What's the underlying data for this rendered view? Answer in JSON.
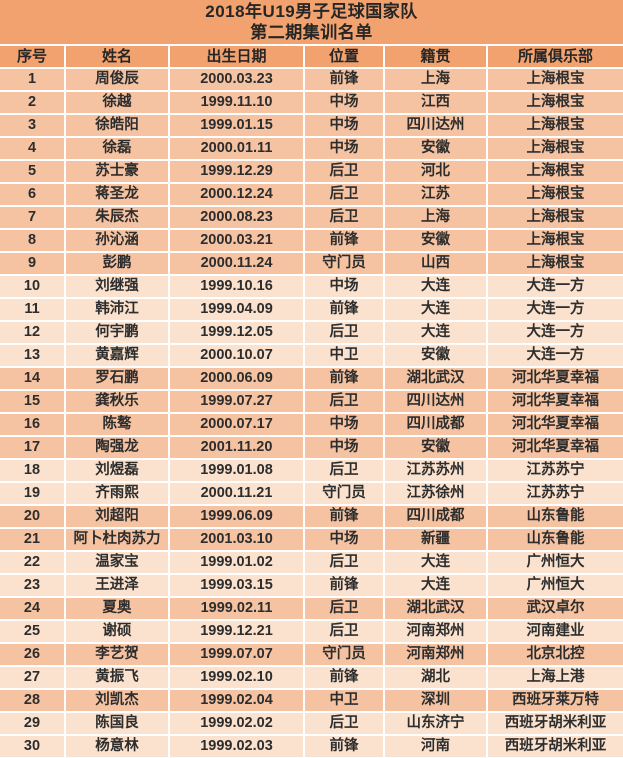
{
  "title": {
    "line1": "2018年U19男子足球国家队",
    "line2": "第二期集训名单"
  },
  "columns": [
    {
      "key": "no",
      "label": "序号"
    },
    {
      "key": "name",
      "label": "姓名"
    },
    {
      "key": "dob",
      "label": "出生日期"
    },
    {
      "key": "position",
      "label": "位置"
    },
    {
      "key": "hometown",
      "label": "籍贯"
    },
    {
      "key": "club",
      "label": "所属俱乐部"
    }
  ],
  "rows": [
    {
      "no": "1",
      "name": "周俊辰",
      "dob": "2000.03.23",
      "position": "前锋",
      "hometown": "上海",
      "club": "上海根宝",
      "shade": "dark"
    },
    {
      "no": "2",
      "name": "徐越",
      "dob": "1999.11.10",
      "position": "中场",
      "hometown": "江西",
      "club": "上海根宝",
      "shade": "dark"
    },
    {
      "no": "3",
      "name": "徐皓阳",
      "dob": "1999.01.15",
      "position": "中场",
      "hometown": "四川达州",
      "club": "上海根宝",
      "shade": "dark"
    },
    {
      "no": "4",
      "name": "徐磊",
      "dob": "2000.01.11",
      "position": "中场",
      "hometown": "安徽",
      "club": "上海根宝",
      "shade": "dark"
    },
    {
      "no": "5",
      "name": "苏士豪",
      "dob": "1999.12.29",
      "position": "后卫",
      "hometown": "河北",
      "club": "上海根宝",
      "shade": "dark"
    },
    {
      "no": "6",
      "name": "蒋圣龙",
      "dob": "2000.12.24",
      "position": "后卫",
      "hometown": "江苏",
      "club": "上海根宝",
      "shade": "dark"
    },
    {
      "no": "7",
      "name": "朱辰杰",
      "dob": "2000.08.23",
      "position": "后卫",
      "hometown": "上海",
      "club": "上海根宝",
      "shade": "dark"
    },
    {
      "no": "8",
      "name": "孙沁涵",
      "dob": "2000.03.21",
      "position": "前锋",
      "hometown": "安徽",
      "club": "上海根宝",
      "shade": "dark"
    },
    {
      "no": "9",
      "name": "彭鹏",
      "dob": "2000.11.24",
      "position": "守门员",
      "hometown": "山西",
      "club": "上海根宝",
      "shade": "dark"
    },
    {
      "no": "10",
      "name": "刘继强",
      "dob": "1999.10.16",
      "position": "中场",
      "hometown": "大连",
      "club": "大连一方",
      "shade": "light"
    },
    {
      "no": "11",
      "name": "韩沛江",
      "dob": "1999.04.09",
      "position": "前锋",
      "hometown": "大连",
      "club": "大连一方",
      "shade": "light"
    },
    {
      "no": "12",
      "name": "何宇鹏",
      "dob": "1999.12.05",
      "position": "后卫",
      "hometown": "大连",
      "club": "大连一方",
      "shade": "light"
    },
    {
      "no": "13",
      "name": "黄嘉辉",
      "dob": "2000.10.07",
      "position": "中卫",
      "hometown": "安徽",
      "club": "大连一方",
      "shade": "light"
    },
    {
      "no": "14",
      "name": "罗石鹏",
      "dob": "2000.06.09",
      "position": "前锋",
      "hometown": "湖北武汉",
      "club": "河北华夏幸福",
      "shade": "dark"
    },
    {
      "no": "15",
      "name": "龚秋乐",
      "dob": "1999.07.27",
      "position": "后卫",
      "hometown": "四川达州",
      "club": "河北华夏幸福",
      "shade": "dark"
    },
    {
      "no": "16",
      "name": "陈骜",
      "dob": "2000.07.17",
      "position": "中场",
      "hometown": "四川成都",
      "club": "河北华夏幸福",
      "shade": "dark"
    },
    {
      "no": "17",
      "name": "陶强龙",
      "dob": "2001.11.20",
      "position": "中场",
      "hometown": "安徽",
      "club": "河北华夏幸福",
      "shade": "dark"
    },
    {
      "no": "18",
      "name": "刘煜磊",
      "dob": "1999.01.08",
      "position": "后卫",
      "hometown": "江苏苏州",
      "club": "江苏苏宁",
      "shade": "light"
    },
    {
      "no": "19",
      "name": "齐雨熙",
      "dob": "2000.11.21",
      "position": "守门员",
      "hometown": "江苏徐州",
      "club": "江苏苏宁",
      "shade": "light"
    },
    {
      "no": "20",
      "name": "刘超阳",
      "dob": "1999.06.09",
      "position": "前锋",
      "hometown": "四川成都",
      "club": "山东鲁能",
      "shade": "dark"
    },
    {
      "no": "21",
      "name": "阿卜杜肉苏力",
      "dob": "2001.03.10",
      "position": "中场",
      "hometown": "新疆",
      "club": "山东鲁能",
      "shade": "dark"
    },
    {
      "no": "22",
      "name": "温家宝",
      "dob": "1999.01.02",
      "position": "后卫",
      "hometown": "大连",
      "club": "广州恒大",
      "shade": "light"
    },
    {
      "no": "23",
      "name": "王进泽",
      "dob": "1999.03.15",
      "position": "前锋",
      "hometown": "大连",
      "club": "广州恒大",
      "shade": "light"
    },
    {
      "no": "24",
      "name": "夏奥",
      "dob": "1999.02.11",
      "position": "后卫",
      "hometown": "湖北武汉",
      "club": "武汉卓尔",
      "shade": "dark"
    },
    {
      "no": "25",
      "name": "谢硕",
      "dob": "1999.12.21",
      "position": "后卫",
      "hometown": "河南郑州",
      "club": "河南建业",
      "shade": "light"
    },
    {
      "no": "26",
      "name": "李艺贺",
      "dob": "1999.07.07",
      "position": "守门员",
      "hometown": "河南郑州",
      "club": "北京北控",
      "shade": "dark"
    },
    {
      "no": "27",
      "name": "黄振飞",
      "dob": "1999.02.10",
      "position": "前锋",
      "hometown": "湖北",
      "club": "上海上港",
      "shade": "light"
    },
    {
      "no": "28",
      "name": "刘凯杰",
      "dob": "1999.02.04",
      "position": "中卫",
      "hometown": "深圳",
      "club": "西班牙莱万特",
      "shade": "dark"
    },
    {
      "no": "29",
      "name": "陈国良",
      "dob": "1999.02.02",
      "position": "后卫",
      "hometown": "山东济宁",
      "club": "西班牙胡米利亚",
      "shade": "light"
    },
    {
      "no": "30",
      "name": "杨意林",
      "dob": "1999.02.03",
      "position": "前锋",
      "hometown": "河南",
      "club": "西班牙胡米利亚",
      "shade": "light"
    }
  ],
  "colors": {
    "header_bg": "#F1A26F",
    "row_dark_bg": "#F5C3A2",
    "row_light_bg": "#FBE2CE",
    "grid_line": "#FFFFFF",
    "text": "#2D2D2D"
  }
}
